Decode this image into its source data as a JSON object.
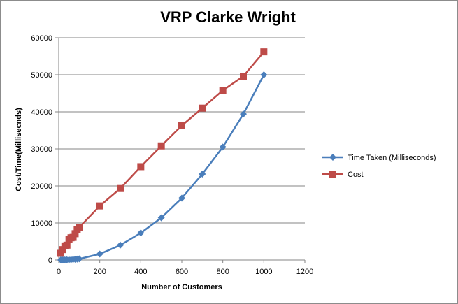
{
  "chart_data": {
    "type": "line",
    "title": "VRP Clarke Wright",
    "xlabel": "Number of Customers",
    "ylabel": "Cost/Time(Millisecnds)",
    "xlim": [
      0,
      1200
    ],
    "ylim": [
      0,
      60000
    ],
    "xticks": [
      0,
      200,
      400,
      600,
      800,
      1000,
      1200
    ],
    "yticks": [
      0,
      10000,
      20000,
      30000,
      40000,
      50000,
      60000
    ],
    "grid": "horizontal",
    "legend_position": "right",
    "series": [
      {
        "name": "Time Taken (Milliseconds)",
        "color": "#4a7ebb",
        "marker": "diamond",
        "points": [
          [
            10,
            0
          ],
          [
            20,
            10
          ],
          [
            30,
            20
          ],
          [
            40,
            40
          ],
          [
            50,
            60
          ],
          [
            60,
            90
          ],
          [
            70,
            130
          ],
          [
            80,
            180
          ],
          [
            90,
            240
          ],
          [
            100,
            300
          ],
          [
            200,
            1600
          ],
          [
            300,
            4000
          ],
          [
            400,
            7300
          ],
          [
            500,
            11400
          ],
          [
            600,
            16700
          ],
          [
            700,
            23200
          ],
          [
            800,
            30500
          ],
          [
            900,
            39400
          ],
          [
            1000,
            50000
          ]
        ]
      },
      {
        "name": "Cost",
        "color": "#be4b48",
        "marker": "square",
        "points": [
          [
            10,
            1800
          ],
          [
            20,
            2800
          ],
          [
            30,
            3800
          ],
          [
            40,
            4000
          ],
          [
            50,
            5600
          ],
          [
            60,
            6000
          ],
          [
            70,
            6100
          ],
          [
            80,
            7100
          ],
          [
            90,
            8200
          ],
          [
            100,
            8800
          ],
          [
            200,
            14600
          ],
          [
            300,
            19300
          ],
          [
            400,
            25200
          ],
          [
            500,
            30800
          ],
          [
            600,
            36300
          ],
          [
            700,
            41000
          ],
          [
            800,
            45800
          ],
          [
            900,
            49600
          ],
          [
            1000,
            56200
          ]
        ]
      }
    ]
  }
}
